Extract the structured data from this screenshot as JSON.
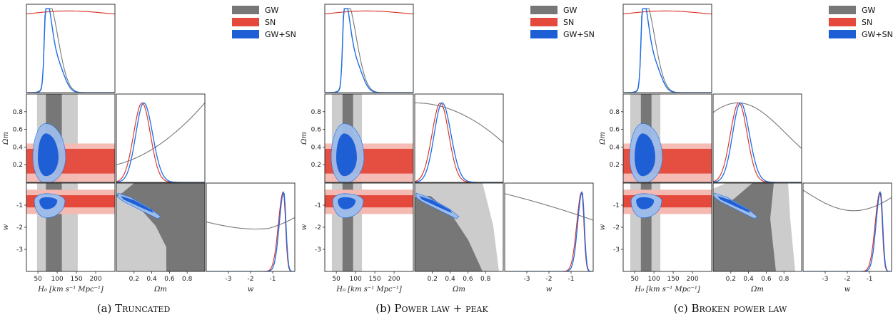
{
  "legend": [
    "GW",
    "SN",
    "GW+SN"
  ],
  "colors": {
    "gw_outer": "#cccccc",
    "gw_inner": "#777777",
    "sn_outer": "#f4b9b1",
    "sn_inner": "#e4493c",
    "joint_outer": "#9dbcea",
    "joint_inner": "#1f5fd6",
    "gw_line": "#777777",
    "sn_line": "#d92b1f",
    "joint_line": "#1a6ee8"
  },
  "axes": {
    "H0": {
      "label": "H₀ [km s⁻¹ Mpc⁻¹]",
      "ticks": [
        "50",
        "100",
        "150",
        "200"
      ],
      "range": [
        20,
        250
      ]
    },
    "Om": {
      "label": "Ωm",
      "ticks": [
        "0.2",
        "0.4",
        "0.6",
        "0.8"
      ],
      "range": [
        0,
        1
      ]
    },
    "w": {
      "label": "w",
      "ticks": [
        "-3",
        "-2",
        "-1"
      ],
      "range": [
        -4,
        0
      ]
    },
    "Om_y_ticks": [
      "0.2",
      "0.4",
      "0.6",
      "0.8"
    ],
    "w_y_ticks": [
      "-1",
      "-2",
      "-3"
    ]
  },
  "chart_data": [
    {
      "type": "corner",
      "caption_label": "(a)",
      "caption_name": "Truncated",
      "gw_om_shape": "rising",
      "gw_w_shape": "upper",
      "series_peaks": {
        "H0": 70,
        "Om": 0.3,
        "w": -0.6
      }
    },
    {
      "type": "corner",
      "caption_label": "(b)",
      "caption_name": "Power law + peak",
      "gw_om_shape": "falling",
      "gw_w_shape": "lower",
      "series_peaks": {
        "H0": 70,
        "Om": 0.3,
        "w": -0.6
      }
    },
    {
      "type": "corner",
      "caption_label": "(c)",
      "caption_name": "Broken power law",
      "gw_om_shape": "dome",
      "gw_w_shape": "mid",
      "series_peaks": {
        "H0": 70,
        "Om": 0.3,
        "w": -0.6
      }
    }
  ]
}
